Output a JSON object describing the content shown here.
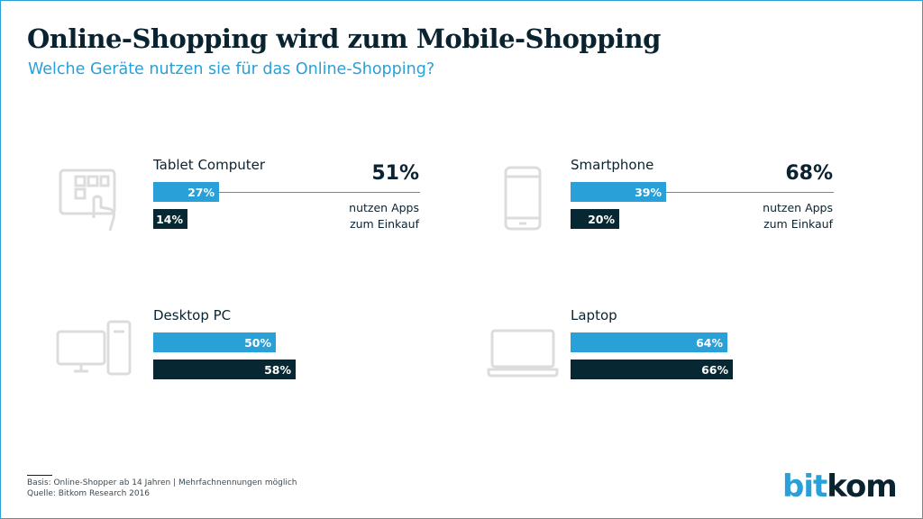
{
  "header": {
    "title": "Online-Shopping wird zum Mobile-Shopping",
    "subtitle": "Welche Geräte nutzen sie für das Online-Shopping?"
  },
  "chart_data": {
    "type": "bar",
    "title": "Online-Shopping wird zum Mobile-Shopping",
    "subtitle": "Welche Geräte nutzen sie für das Online-Shopping?",
    "xlim": [
      0,
      100
    ],
    "series_colors": [
      "#29a0d8",
      "#072832"
    ],
    "panels": [
      {
        "device": "Tablet Computer",
        "icon": "tablet-touch-icon",
        "values": [
          27,
          14
        ],
        "labels": [
          "27%",
          "14%"
        ],
        "apps_pct": "51%",
        "apps_line1": "nutzen Apps",
        "apps_line2": "zum Einkauf"
      },
      {
        "device": "Smartphone",
        "icon": "smartphone-icon",
        "values": [
          39,
          20
        ],
        "labels": [
          "39%",
          "20%"
        ],
        "apps_pct": "68%",
        "apps_line1": "nutzen Apps",
        "apps_line2": "zum Einkauf"
      },
      {
        "device": "Desktop PC",
        "icon": "desktop-pc-icon",
        "values": [
          50,
          58
        ],
        "labels": [
          "50%",
          "58%"
        ]
      },
      {
        "device": "Laptop",
        "icon": "laptop-icon",
        "values": [
          64,
          66
        ],
        "labels": [
          "64%",
          "66%"
        ]
      }
    ]
  },
  "footer": {
    "basis": "Basis: Online-Shopper ab 14 Jahren | Mehrfachnennungen möglich",
    "source": "Quelle: Bitkom Research 2016"
  },
  "logo": {
    "part1": "bit",
    "part2": "kom"
  }
}
